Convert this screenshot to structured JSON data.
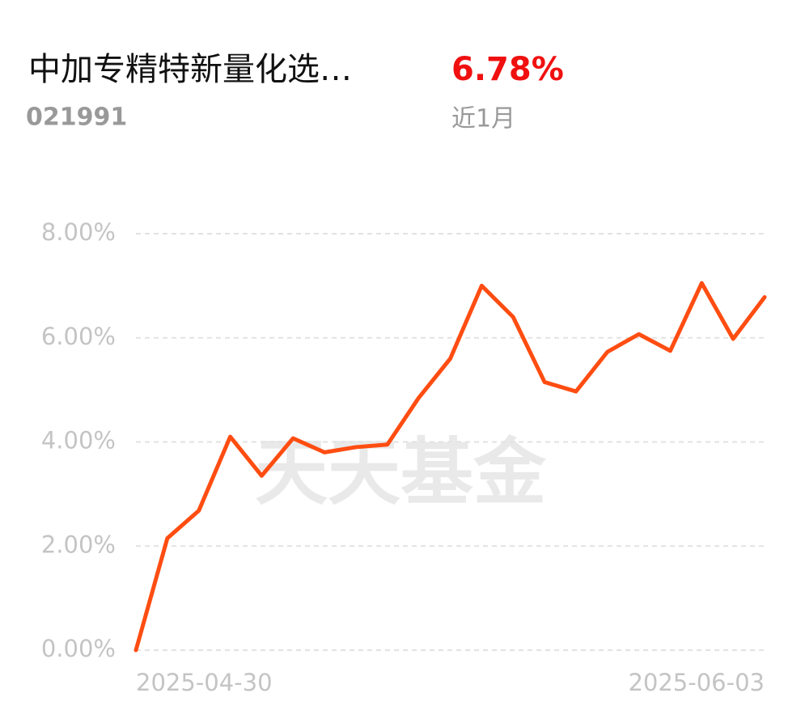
{
  "header": {
    "name": "中加专精特新量化选…",
    "code": "021991",
    "return": "6.78%",
    "period": "近1月"
  },
  "watermark": "天天基金",
  "chart_data": {
    "type": "line",
    "categories": [
      "2025-04-30",
      null,
      null,
      null,
      null,
      null,
      null,
      null,
      null,
      null,
      null,
      null,
      null,
      null,
      null,
      null,
      null,
      null,
      null,
      null,
      "2025-06-03"
    ],
    "series": [
      {
        "color": "#ff4d12",
        "values": [
          0,
          2.15,
          2.68,
          4.1,
          3.35,
          4.07,
          3.8,
          3.9,
          3.95,
          4.85,
          5.6,
          7.0,
          6.4,
          5.15,
          4.97,
          5.73,
          6.07,
          5.75,
          7.05,
          5.98,
          6.78
        ]
      }
    ],
    "ylim": [
      0,
      8
    ],
    "yticks": [
      {
        "value": 0,
        "label": "0.00%"
      },
      {
        "value": 2,
        "label": "2.00%"
      },
      {
        "value": 4,
        "label": "4.00%"
      },
      {
        "value": 6,
        "label": "6.00%"
      },
      {
        "value": 8,
        "label": "8.00%"
      }
    ],
    "grid": true
  }
}
